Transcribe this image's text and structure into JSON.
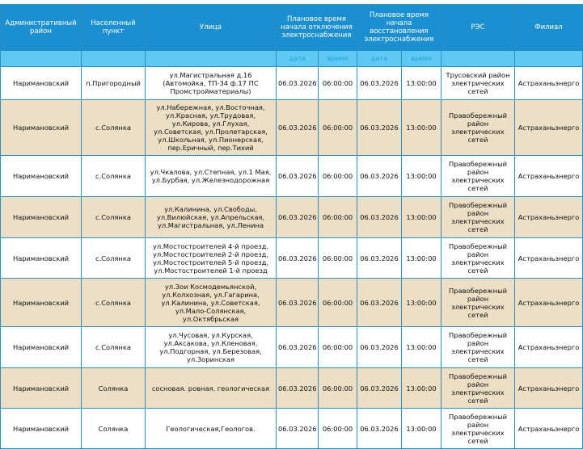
{
  "headers": {
    "district": "Административный район",
    "settlement": "Населенный пункт",
    "street": "Улица",
    "off": "Плановое время начала отключения электроснабжения",
    "on": "Плановое время начала восстановления электроснабжения",
    "res": "РЭС",
    "branch": "Филиал",
    "date": "дата",
    "time": "время"
  },
  "rows": [
    {
      "district": "Наримановский",
      "settlement": "п.Пригородный",
      "street": "ул.Магистральная д.16 (Автомойка, ТП-34 ф.17 ПС Промстройматериалы)",
      "off_date": "06.03.2026",
      "off_time": "06:00:00",
      "on_date": "06.03.2026",
      "on_time": "13:00:00",
      "res": "Трусовский район электрических сетей",
      "branch": "Астраханьэнерго"
    },
    {
      "district": "Наримановский",
      "settlement": "с.Солянка",
      "street": "ул.Набережная, ул.Восточная, ул.Красная, ул.Трудовая, ул.Кирова, ул.Глухая, ул.Советская, ул.Пролетарская, ул.Школьная, ул.Пионерская, пер.Еричный, пер.Тихий",
      "off_date": "06.03.2026",
      "off_time": "06:00:00",
      "on_date": "06.03.2026",
      "on_time": "13:00:00",
      "res": "Правобережный район электрических сетей",
      "branch": "Астраханьэнерго"
    },
    {
      "district": "Наримановский",
      "settlement": "с.Солянка",
      "street": "ул.Чкалова, ул.Степная, ул.1 Мая, ул.Бурбая, ул.Железнодорожная",
      "off_date": "06.03.2026",
      "off_time": "06:00:00",
      "on_date": "06.03.2026",
      "on_time": "13:00:00",
      "res": "Правобережный район электрических сетей",
      "branch": "Астраханьэнерго"
    },
    {
      "district": "Наримановский",
      "settlement": "с.Солянка",
      "street": "ул.Калинина, ул.Свободы, ул.Вилюйская, ул.Апрельская, ул.Магистральная, ул.Ленина",
      "off_date": "06.03.2026",
      "off_time": "06:00:00",
      "on_date": "06.03.2026",
      "on_time": "13:00:00",
      "res": "Правобережный район электрических сетей",
      "branch": "Астраханьэнерго"
    },
    {
      "district": "Наримановский",
      "settlement": "с.Солянка",
      "street": "ул.Мостостроителей 4-й проезд, ул.Мостостроителей 2-й проезд, ул.Мостостроителей 5-й проезд, ул.Мостостроителей 1-й проезд",
      "off_date": "06.03.2026",
      "off_time": "06:00:00",
      "on_date": "06.03.2026",
      "on_time": "13:00:00",
      "res": "Правобережный район электрических сетей",
      "branch": "Астраханьэнерго"
    },
    {
      "district": "Наримановский",
      "settlement": "с.Солянка",
      "street": "ул.Зои Космодемьянской, ул.Колхозная, ул.Гагарина, ул.Калинина, ул.Советская, ул.Мало-Солянская, ул.Октябрьская",
      "off_date": "06.03.2026",
      "off_time": "06:00:00",
      "on_date": "06.03.2026",
      "on_time": "13:00:00",
      "res": "Правобережный район электрических сетей",
      "branch": "Астраханьэнерго"
    },
    {
      "district": "Наримановский",
      "settlement": "с.Солянка",
      "street": "ул.Чусовая, ул.Курская, ул.Аксакова, ул.Кленовая, ул.Подгорная, ул.Березовая, ул.Зоринская",
      "off_date": "06.03.2026",
      "off_time": "06:00:00",
      "on_date": "06.03.2026",
      "on_time": "13:00:00",
      "res": "Правобережный район электрических сетей",
      "branch": "Астраханьэнерго"
    },
    {
      "district": "Наримановский",
      "settlement": "Солянка",
      "street": "сосновая. ровная. геологическая",
      "off_date": "06.03.2026",
      "off_time": "06:00:00",
      "on_date": "06.03.2026",
      "on_time": "13:00:00",
      "res": "Правобережный район электрических сетей",
      "branch": "Астраханьэнерго"
    },
    {
      "district": "Наримановский",
      "settlement": "Солянка",
      "street": "Геологическая,Геологов.",
      "off_date": "06.03.2026",
      "off_time": "06:00:00",
      "on_date": "06.03.2026",
      "on_time": "13:00:00",
      "res": "Правобережный район электрических сетей",
      "branch": "Астраханьэнерго"
    }
  ]
}
